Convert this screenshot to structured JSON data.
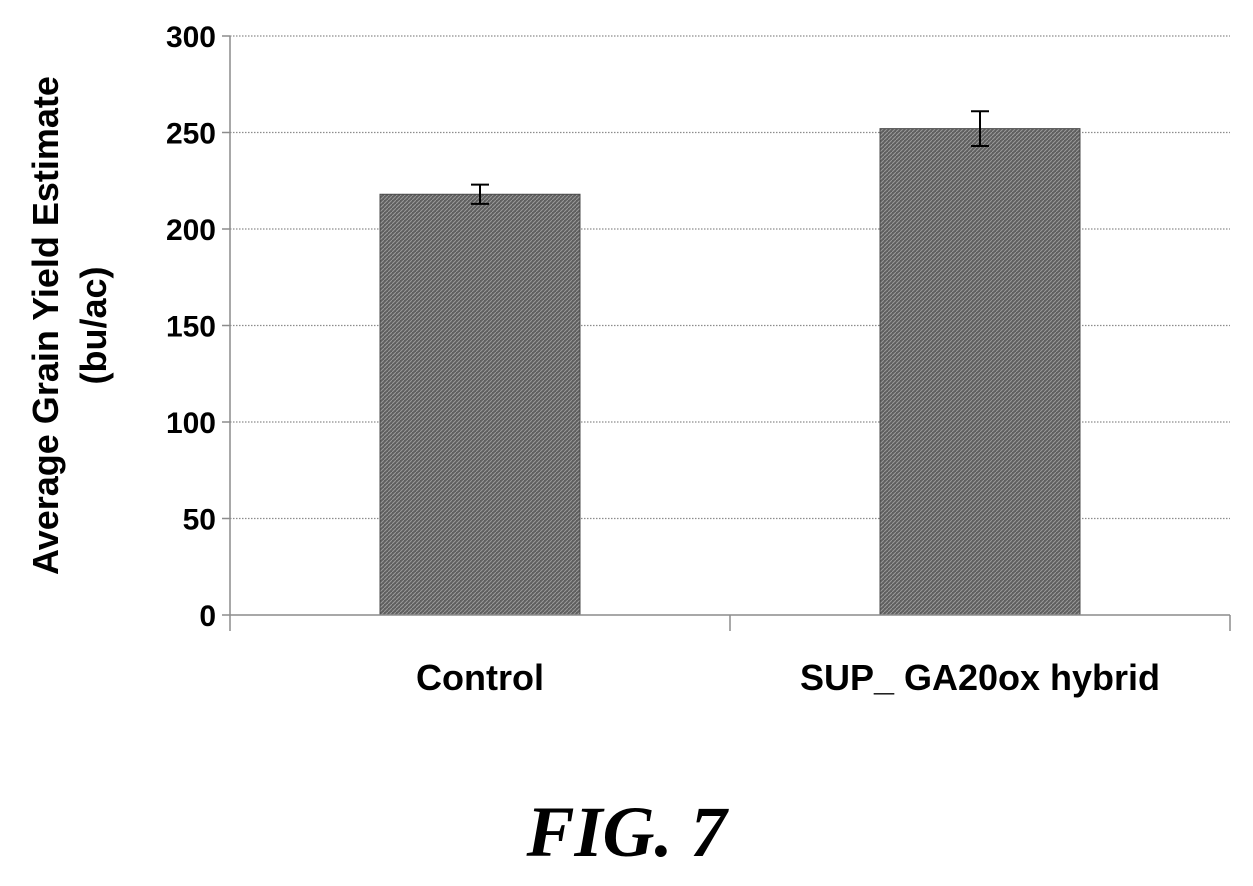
{
  "chart_data": {
    "type": "bar",
    "categories": [
      "Control",
      "SUP_ GA20ox hybrid"
    ],
    "values": [
      218,
      252
    ],
    "error": [
      5,
      9
    ],
    "ylabel_lines": [
      "Average Grain Yield Estimate",
      "(bu/ac)"
    ],
    "ylim": [
      0,
      300
    ],
    "yticks": [
      "0",
      "50",
      "100",
      "150",
      "200",
      "250",
      "300"
    ],
    "grid": true,
    "legend": "none",
    "bar_color": "#6e6e6e"
  },
  "figure_label": "FIG. 7"
}
